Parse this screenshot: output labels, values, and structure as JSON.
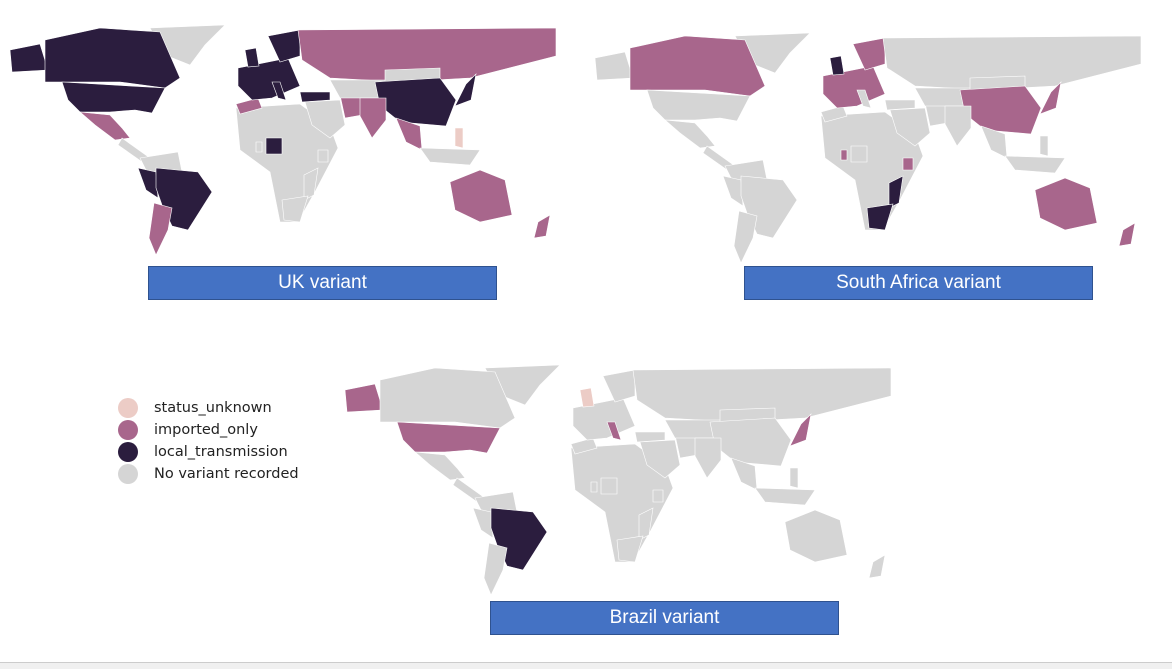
{
  "colors": {
    "status_unknown": "#ecccc6",
    "imported_only": "#a8668c",
    "local_transmission": "#2b1d3e",
    "none": "#d5d5d5",
    "label_bg": "#4472c4"
  },
  "legend": [
    {
      "key": "status_unknown",
      "label": "status_unknown"
    },
    {
      "key": "imported_only",
      "label": "imported_only"
    },
    {
      "key": "local_transmission",
      "label": "local_transmission"
    },
    {
      "key": "none",
      "label": "No variant recorded"
    }
  ],
  "maps": [
    {
      "title": "UK variant",
      "status": {
        "alaska": "local_transmission",
        "canada": "local_transmission",
        "usa": "local_transmission",
        "mexico": "imported_only",
        "greenland": "none",
        "brazil": "local_transmission",
        "peru": "local_transmission",
        "argentina": "imported_only",
        "europe": "local_transmission",
        "scandinavia": "local_transmission",
        "uk": "local_transmission",
        "italy": "local_transmission",
        "russia": "imported_only",
        "turkey": "local_transmission",
        "nigeria": "local_transmission",
        "india": "imported_only",
        "china": "local_transmission",
        "seasia": "imported_only",
        "japan": "local_transmission",
        "australia": "imported_only",
        "nz": "imported_only",
        "philippines": "status_unknown",
        "iran": "imported_only",
        "morocco": "imported_only"
      }
    },
    {
      "title": "South Africa variant",
      "status": {
        "canada": "imported_only",
        "europe": "imported_only",
        "uk": "local_transmission",
        "scandinavia": "imported_only",
        "china": "imported_only",
        "japan": "imported_only",
        "australia": "imported_only",
        "nz": "imported_only",
        "southafrica": "local_transmission",
        "mozambique": "local_transmission",
        "kenya": "imported_only",
        "ghana": "imported_only"
      }
    },
    {
      "title": "Brazil variant",
      "status": {
        "alaska": "imported_only",
        "usa": "imported_only",
        "brazil": "local_transmission",
        "italy": "imported_only",
        "uk": "status_unknown",
        "japan": "imported_only"
      }
    }
  ]
}
